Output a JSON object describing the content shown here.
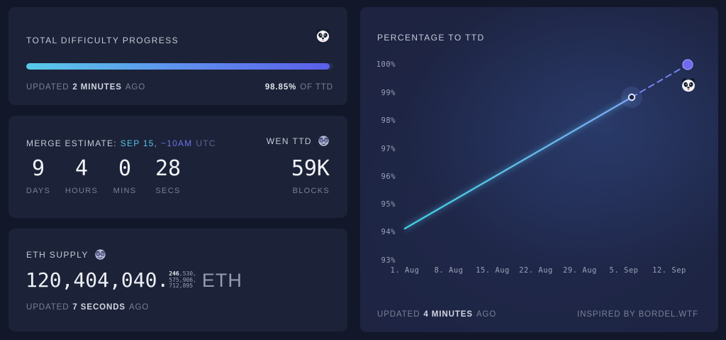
{
  "colors": {
    "page_bg": "#12172a",
    "card_bg": "#1c2237",
    "accent_cyan": "#58cbe8",
    "accent_purple": "#5a5ee9",
    "projection_dash": "#7583ee",
    "endpoint_dot": "#6f68f2",
    "dim_text": "#798096",
    "bright_text": "#d2d6e2"
  },
  "cards": {
    "difficulty": {
      "title": "TOTAL DIFFICULTY PROGRESS",
      "icon": "panda-icon",
      "progress_percent": "98.85",
      "updated_prefix": "UPDATED",
      "updated_value": "2 MINUTES",
      "updated_suffix": "AGO",
      "percent_value": "98.85%",
      "percent_suffix": "OF TTD"
    },
    "merge": {
      "label": "MERGE ESTIMATE:",
      "date": "SEP 15,",
      "time": "~10AM",
      "timezone": "UTC",
      "wen_label": "WEN TTD",
      "wen_icon": "disguised-face-icon",
      "countdown": [
        {
          "value": "9",
          "unit": "DAYS"
        },
        {
          "value": "4",
          "unit": "HOURS"
        },
        {
          "value": "0",
          "unit": "MINS"
        },
        {
          "value": "28",
          "unit": "SECS"
        }
      ],
      "blocks_value": "59K",
      "blocks_unit": "BLOCKS"
    },
    "supply": {
      "title": "ETH SUPPLY",
      "icon": "disguised-face-icon",
      "integer_part": "120,404,040.",
      "decimals_line1_bold": "246",
      "decimals_line1_rest": ",530,",
      "decimals_line2": "575,906,",
      "decimals_line3": "712,895",
      "unit": "ETH",
      "updated_prefix": "UPDATED",
      "updated_value": "7 SECONDS",
      "updated_suffix": "AGO"
    },
    "chart": {
      "title": "PERCENTAGE TO TTD",
      "updated_prefix": "UPDATED",
      "updated_value": "4 MINUTES",
      "updated_suffix": "AGO",
      "credit": "INSPIRED BY BORDEL.WTF",
      "end_icon": "panda-icon"
    }
  },
  "chart_data": {
    "type": "line",
    "title": "PERCENTAGE TO TTD",
    "xlabel": "",
    "ylabel": "",
    "ylim": [
      93,
      100
    ],
    "grid": false,
    "legend": false,
    "y_tick_labels": [
      "100%",
      "99%",
      "98%",
      "97%",
      "96%",
      "95%",
      "94%",
      "93%"
    ],
    "x_tick_labels": [
      "1. Aug",
      "8. Aug",
      "15. Aug",
      "22. Aug",
      "29. Aug",
      "5. Sep",
      "12. Sep"
    ],
    "series": [
      {
        "name": "actual progress",
        "style": "solid, cyan-to-blue gradient with glow",
        "points": [
          {
            "x": "1. Aug",
            "y": 94.1
          },
          {
            "x": "6. Sep",
            "y": 98.85
          }
        ]
      },
      {
        "name": "projection to TTD",
        "style": "dashed periwinkle",
        "points": [
          {
            "x": "6. Sep",
            "y": 98.85
          },
          {
            "x": "15. Sep",
            "y": 100.0
          }
        ]
      }
    ],
    "annotations": [
      {
        "type": "ring-marker-with-glow",
        "x": "6. Sep",
        "y": 98.85,
        "meaning": "current progress 98.85%"
      },
      {
        "type": "filled-dot",
        "x": "15. Sep",
        "y": 100.0,
        "meaning": "projected TTD hit"
      },
      {
        "type": "panda-icon",
        "position": "below projected endpoint"
      }
    ]
  }
}
